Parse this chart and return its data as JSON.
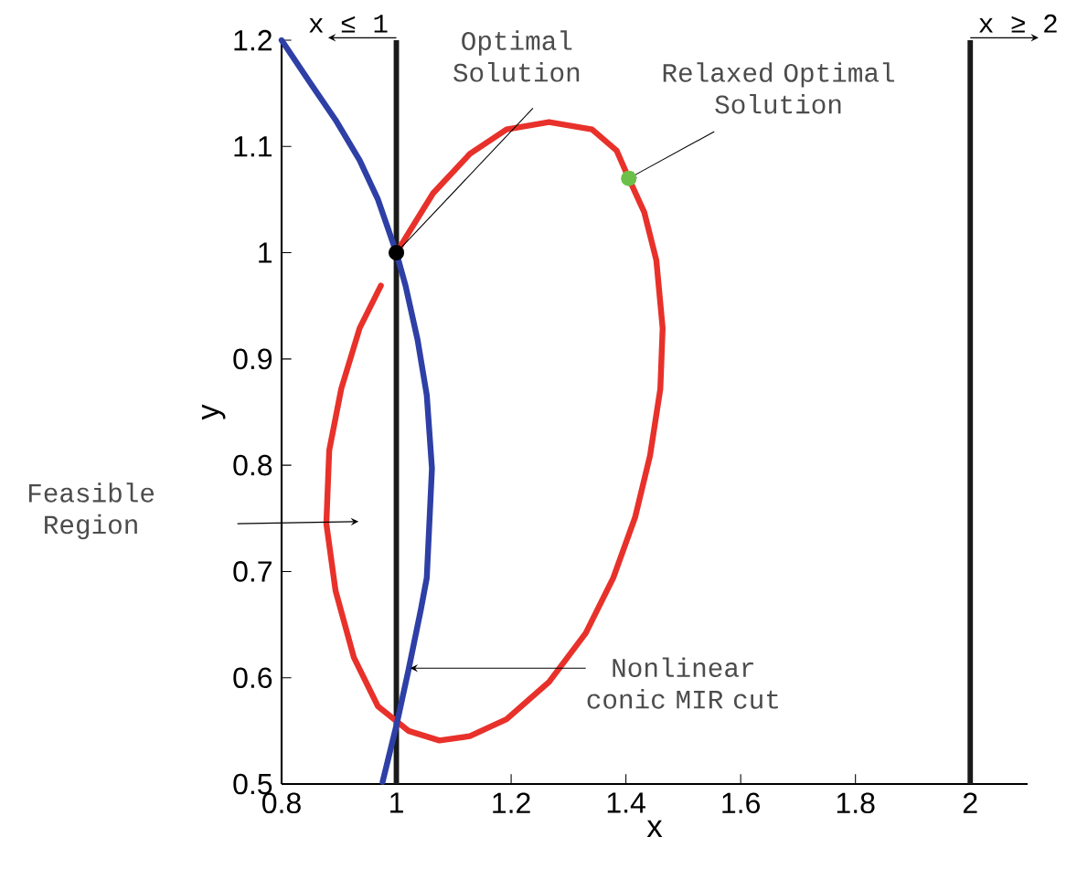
{
  "chart_data": {
    "type": "line",
    "xlabel": "x",
    "ylabel": "y",
    "xlim": [
      0.8,
      2.1
    ],
    "ylim": [
      0.5,
      1.2
    ],
    "xticks": [
      0.8,
      1,
      1.2,
      1.4,
      1.6,
      1.8,
      2
    ],
    "yticks": [
      0.5,
      0.6,
      0.7,
      0.8,
      0.9,
      1,
      1.1,
      1.2
    ],
    "grid": false,
    "series": [
      {
        "color": "#e8312a",
        "marker": "none",
        "x": [
          1.0,
          1.064,
          1.128,
          1.192,
          1.266,
          1.341,
          1.384,
          1.405,
          1.432,
          1.453,
          1.464,
          1.46,
          1.442,
          1.416,
          1.378,
          1.33,
          1.266,
          1.192,
          1.128,
          1.075,
          1.021,
          0.968,
          0.926,
          0.894,
          0.878,
          0.883,
          0.904,
          0.936,
          0.973
        ],
        "values": [
          1.0,
          1.056,
          1.093,
          1.116,
          1.123,
          1.116,
          1.096,
          1.07,
          1.038,
          0.993,
          0.929,
          0.872,
          0.809,
          0.751,
          0.694,
          0.642,
          0.596,
          0.561,
          0.545,
          0.541,
          0.55,
          0.573,
          0.619,
          0.682,
          0.745,
          0.814,
          0.872,
          0.929,
          0.969
        ]
      },
      {
        "color": "#2e3fa6",
        "marker": "none",
        "x": [
          0.8,
          0.851,
          0.894,
          0.936,
          0.968,
          1.0,
          1.016,
          1.037,
          1.053,
          1.062,
          1.053,
          1.043,
          1.021,
          1.0,
          0.976
        ],
        "values": [
          1.2,
          1.159,
          1.125,
          1.087,
          1.05,
          1.0,
          0.969,
          0.918,
          0.866,
          0.797,
          0.694,
          0.665,
          0.607,
          0.555,
          0.502
        ]
      },
      {
        "type": "scatter",
        "color": "#000000",
        "marker": "circle",
        "x": [
          1.0
        ],
        "values": [
          1.0
        ]
      },
      {
        "type": "scatter",
        "color": "#6cc04a",
        "marker": "circle",
        "x": [
          1.405
        ],
        "values": [
          1.07
        ]
      }
    ],
    "ref_lines": [
      {
        "axis": "x",
        "value": 1,
        "label": "x ≤ 1",
        "color": "#1a1a1a"
      },
      {
        "axis": "x",
        "value": 2,
        "label": "x ≥ 2",
        "color": "#1a1a1a"
      }
    ],
    "annotations": [
      {
        "text": "Optimal Solution",
        "x": 1.0,
        "y": 1.0
      },
      {
        "text": "Relaxed Optimal Solution",
        "x": 1.405,
        "y": 1.07
      },
      "Feasible Region",
      {
        "text": "Nonlinear conic MIR cut",
        "x": 1.024,
        "y": 0.609
      }
    ]
  }
}
